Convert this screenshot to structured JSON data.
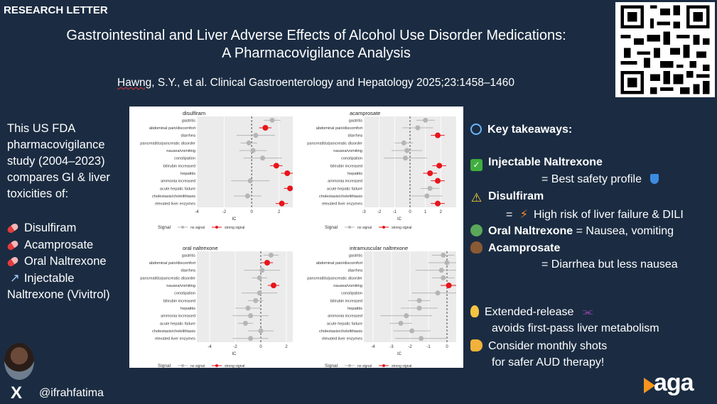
{
  "header": {
    "label": "RESEARCH LETTER",
    "title_line1": "Gastrointestinal and Liver Adverse Effects of Alcohol Use Disorder Medications:",
    "title_line2": "A Pharmacovigilance Analysis",
    "citation_author": "Hawng",
    "citation_rest": ", S.Y., et al. Clinical Gastroenterology and Hepatology 2025;23:1458–1460"
  },
  "summary": {
    "text": "This US FDA pharmacovigilance study (2004–2023) compares GI & liver toxicities of:"
  },
  "drugs": [
    "Disulfiram",
    "Acamprosate",
    "Oral Naltrexone",
    "Injectable Naltrexone (Vivitrol)"
  ],
  "takeaways": {
    "heading": "Key takeaways:",
    "inj_name": "Injectable Naltrexone",
    "inj_desc": "= Best safety profile",
    "dis_name": "Disulfiram",
    "dis_eq": "=",
    "dis_desc": "High risk of liver failure & DILI",
    "oral_name": "Oral Naltrexone",
    "oral_desc": "= Nausea, vomiting",
    "aca_name": "Acamprosate",
    "aca_desc": "= Diarrhea but less nausea",
    "er_line1": "Extended-release",
    "er_line2": "avoids first-pass liver metabolism",
    "mo_line1": "Consider monthly shots",
    "mo_line2": "for safer AUD therapy!"
  },
  "footer": {
    "handle": "@ifrahfatima",
    "x_symbol": "X",
    "brand": "aga"
  },
  "chart_data": [
    {
      "type": "scatter",
      "title": "disulfiram",
      "xlabel": "IC",
      "xlim": [
        -4,
        3
      ],
      "xticks": [
        -4,
        -2,
        0,
        2
      ],
      "categories": [
        "gastritis",
        "abdominal pain/discomfort",
        "diarrhea",
        "pancreatitis/pancreatic disorder",
        "nausea/vomiting",
        "constipation",
        "bilirubin increased",
        "hepatitis",
        "ammonia increased",
        "acute hepatic failure",
        "cholestasis/cholelithiasis",
        "elevated liver enzymes"
      ],
      "values": [
        1.5,
        1.0,
        0.3,
        -0.2,
        0.1,
        0.8,
        1.8,
        2.6,
        -0.1,
        2.8,
        -0.3,
        2.2
      ],
      "signal": [
        0,
        1,
        0,
        0,
        0,
        0,
        1,
        1,
        0,
        1,
        0,
        1
      ]
    },
    {
      "type": "scatter",
      "title": "acamprosate",
      "xlabel": "IC",
      "xlim": [
        -3,
        3
      ],
      "xticks": [
        -3,
        -2,
        -1,
        0,
        1,
        2
      ],
      "categories": [
        "gastritis",
        "abdominal pain/discomfort",
        "diarrhea",
        "pancreatitis/pancreatic disorder",
        "nausea/vomiting",
        "constipation",
        "bilirubin increased",
        "hepatitis",
        "ammonia increased",
        "acute hepatic failure",
        "cholestasis/cholelithiasis",
        "elevated liver enzymes"
      ],
      "values": [
        1.0,
        0.5,
        1.8,
        -0.4,
        -0.2,
        -0.3,
        1.9,
        1.3,
        1.8,
        1.3,
        1.1,
        1.8
      ],
      "signal": [
        0,
        0,
        1,
        0,
        0,
        0,
        1,
        1,
        1,
        0,
        0,
        1
      ]
    },
    {
      "type": "scatter",
      "title": "oral naltrexone",
      "xlabel": "IC",
      "xlim": [
        -5,
        2.5
      ],
      "xticks": [
        -4,
        -2,
        0,
        2
      ],
      "categories": [
        "gastritis",
        "abdominal pain/discomfort",
        "diarrhea",
        "pancreatitis/pancreatic disorder",
        "nausea/vomiting",
        "constipation",
        "bilirubin increased",
        "hepatitis",
        "ammonia increased",
        "acute hepatic failure",
        "cholestasis/cholelithiasis",
        "elevated liver enzymes"
      ],
      "values": [
        0.8,
        0.5,
        0.1,
        -0.1,
        1.0,
        -0.1,
        -0.4,
        -1.0,
        -0.8,
        -1.2,
        0.0,
        -0.8
      ],
      "signal": [
        0,
        1,
        0,
        0,
        1,
        0,
        0,
        0,
        0,
        0,
        0,
        0
      ]
    },
    {
      "type": "scatter",
      "title": "intramuscular naltrexone",
      "xlabel": "IC",
      "xlim": [
        -4.5,
        0.5
      ],
      "xticks": [
        -4,
        -3,
        -2,
        -1,
        0
      ],
      "categories": [
        "gastritis",
        "abdominal pain/discomfort",
        "diarrhea",
        "pancreatitis/pancreatic disorder",
        "nausea/vomiting",
        "constipation",
        "bilirubin increased",
        "hepatitis",
        "ammonia increased",
        "acute hepatic failure",
        "cholestasis/cholelithiasis",
        "elevated liver enzymes"
      ],
      "values": [
        -0.2,
        0.0,
        -0.3,
        -0.2,
        0.1,
        -0.5,
        -1.5,
        -1.5,
        -2.2,
        -2.5,
        -1.9,
        -1.4
      ],
      "signal": [
        0,
        0,
        0,
        0,
        1,
        0,
        0,
        0,
        0,
        0,
        0,
        0
      ]
    }
  ],
  "legend": {
    "title": "Signal",
    "no": "no signal",
    "strong": "strong signal"
  },
  "colors": {
    "strong": "#e8141c",
    "none": "#b5b5b5",
    "bg": "#1b2c42"
  }
}
